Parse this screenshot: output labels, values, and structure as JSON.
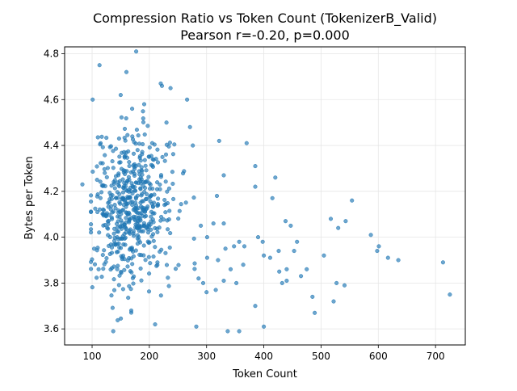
{
  "chart_data": {
    "type": "scatter",
    "title": "Compression Ratio vs Token Count (TokenizerB_Valid)",
    "subtitle": "Pearson r=-0.20, p=0.000",
    "xlabel": "Token Count",
    "ylabel": "Bytes per Token",
    "xlim": [
      52,
      752
    ],
    "ylim": [
      3.53,
      4.83
    ],
    "x_ticks": [
      100,
      200,
      300,
      400,
      500,
      600,
      700
    ],
    "y_ticks": [
      3.6,
      3.8,
      4.0,
      4.2,
      4.4,
      4.6,
      4.8
    ],
    "x_tick_labels": [
      "100",
      "200",
      "300",
      "400",
      "500",
      "600",
      "700"
    ],
    "y_tick_labels": [
      "3.6",
      "3.8",
      "4.0",
      "4.2",
      "4.4",
      "4.6",
      "4.8"
    ],
    "grid": true,
    "marker_color": "#1f77b4",
    "cluster_generation": {
      "count": 560,
      "x_mean": 170,
      "x_sd": 35,
      "x_min": 98,
      "x_max": 282,
      "y_mean": 4.12,
      "y_sd": 0.17,
      "y_min": 3.6,
      "y_max": 4.72,
      "seed": 7
    },
    "points": [
      [
        83,
        4.23
      ],
      [
        101,
        4.6
      ],
      [
        113,
        4.75
      ],
      [
        137,
        3.59
      ],
      [
        177,
        4.81
      ],
      [
        160,
        4.72
      ],
      [
        150,
        4.62
      ],
      [
        170,
        4.56
      ],
      [
        222,
        4.66
      ],
      [
        220,
        4.67
      ],
      [
        237,
        4.65
      ],
      [
        266,
        4.6
      ],
      [
        191,
        4.58
      ],
      [
        210,
        3.62
      ],
      [
        282,
        3.61
      ],
      [
        271,
        4.48
      ],
      [
        276,
        4.4
      ],
      [
        230,
        4.5
      ],
      [
        322,
        4.42
      ],
      [
        370,
        4.41
      ],
      [
        330,
        4.27
      ],
      [
        385,
        4.31
      ],
      [
        385,
        4.22
      ],
      [
        420,
        4.26
      ],
      [
        318,
        4.18
      ],
      [
        415,
        4.17
      ],
      [
        438,
        4.07
      ],
      [
        447,
        4.05
      ],
      [
        530,
        4.04
      ],
      [
        517,
        4.08
      ],
      [
        554,
        4.16
      ],
      [
        543,
        4.07
      ],
      [
        587,
        4.01
      ],
      [
        601,
        3.96
      ],
      [
        598,
        3.94
      ],
      [
        617,
        3.91
      ],
      [
        635,
        3.9
      ],
      [
        713,
        3.89
      ],
      [
        725,
        3.75
      ],
      [
        505,
        3.92
      ],
      [
        475,
        3.86
      ],
      [
        465,
        3.83
      ],
      [
        485,
        3.74
      ],
      [
        489,
        3.67
      ],
      [
        527,
        3.8
      ],
      [
        541,
        3.79
      ],
      [
        522,
        3.72
      ],
      [
        432,
        3.8
      ],
      [
        440,
        3.81
      ],
      [
        427,
        3.85
      ],
      [
        411,
        3.91
      ],
      [
        426,
        3.94
      ],
      [
        440,
        3.86
      ],
      [
        400,
        3.61
      ],
      [
        385,
        3.7
      ],
      [
        357,
        3.59
      ],
      [
        337,
        3.59
      ],
      [
        352,
        3.8
      ],
      [
        330,
        3.81
      ],
      [
        316,
        3.77
      ],
      [
        300,
        3.76
      ],
      [
        294,
        3.8
      ],
      [
        286,
        3.82
      ],
      [
        320,
        3.9
      ],
      [
        333,
        3.95
      ],
      [
        342,
        3.86
      ],
      [
        357,
        3.98
      ],
      [
        366,
        3.96
      ],
      [
        390,
        4.0
      ],
      [
        398,
        3.98
      ],
      [
        400,
        3.92
      ],
      [
        364,
        3.88
      ],
      [
        348,
        3.96
      ],
      [
        330,
        4.06
      ],
      [
        312,
        4.06
      ],
      [
        301,
        4.0
      ],
      [
        290,
        4.05
      ],
      [
        458,
        3.98
      ],
      [
        453,
        3.94
      ],
      [
        301,
        3.91
      ]
    ]
  }
}
